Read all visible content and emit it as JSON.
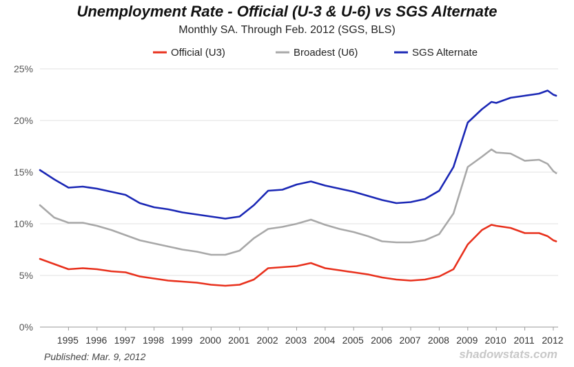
{
  "chart_data": {
    "type": "line",
    "title": "Unemployment Rate - Official (U-3 & U-6) vs SGS Alternate",
    "subtitle": "Monthly SA. Through Feb. 2012  (SGS, BLS)",
    "xlabel": "",
    "ylabel": "",
    "xlim": [
      1994.0,
      2012.17
    ],
    "ylim": [
      0,
      25
    ],
    "ytick_values": [
      0,
      5,
      10,
      15,
      20,
      25
    ],
    "ytick_labels": [
      "0%",
      "5%",
      "10%",
      "15%",
      "20%",
      "25%"
    ],
    "xtick_labels": [
      "1995",
      "1996",
      "1997",
      "1998",
      "1999",
      "2000",
      "2001",
      "2002",
      "2003",
      "2004",
      "2005",
      "2006",
      "2007",
      "2008",
      "2009",
      "2010",
      "2011",
      "2012"
    ],
    "grid": true,
    "legend_position": "top",
    "series": [
      {
        "name": "Official (U3)",
        "color": "#e8301c",
        "x": [
          1994.0,
          1994.5,
          1995.0,
          1995.5,
          1996.0,
          1996.5,
          1997.0,
          1997.5,
          1998.0,
          1998.5,
          1999.0,
          1999.5,
          2000.0,
          2000.5,
          2001.0,
          2001.5,
          2002.0,
          2002.5,
          2003.0,
          2003.5,
          2004.0,
          2004.5,
          2005.0,
          2005.5,
          2006.0,
          2006.5,
          2007.0,
          2007.5,
          2008.0,
          2008.5,
          2009.0,
          2009.5,
          2009.83,
          2010.0,
          2010.5,
          2011.0,
          2011.5,
          2011.8,
          2012.0,
          2012.1
        ],
        "values": [
          6.6,
          6.1,
          5.6,
          5.7,
          5.6,
          5.4,
          5.3,
          4.9,
          4.7,
          4.5,
          4.4,
          4.3,
          4.1,
          4.0,
          4.1,
          4.6,
          5.7,
          5.8,
          5.9,
          6.2,
          5.7,
          5.5,
          5.3,
          5.1,
          4.8,
          4.6,
          4.5,
          4.6,
          4.9,
          5.6,
          8.0,
          9.4,
          9.9,
          9.8,
          9.6,
          9.1,
          9.1,
          8.8,
          8.4,
          8.3
        ]
      },
      {
        "name": "Broadest (U6)",
        "color": "#a8a8a8",
        "x": [
          1994.0,
          1994.5,
          1995.0,
          1995.5,
          1996.0,
          1996.5,
          1997.0,
          1997.5,
          1998.0,
          1998.5,
          1999.0,
          1999.5,
          2000.0,
          2000.5,
          2001.0,
          2001.5,
          2002.0,
          2002.5,
          2003.0,
          2003.5,
          2004.0,
          2004.5,
          2005.0,
          2005.5,
          2006.0,
          2006.5,
          2007.0,
          2007.5,
          2008.0,
          2008.5,
          2009.0,
          2009.5,
          2009.83,
          2010.0,
          2010.5,
          2011.0,
          2011.5,
          2011.8,
          2012.0,
          2012.1
        ],
        "values": [
          11.8,
          10.6,
          10.1,
          10.1,
          9.8,
          9.4,
          8.9,
          8.4,
          8.1,
          7.8,
          7.5,
          7.3,
          7.0,
          7.0,
          7.4,
          8.6,
          9.5,
          9.7,
          10.0,
          10.4,
          9.9,
          9.5,
          9.2,
          8.8,
          8.3,
          8.2,
          8.2,
          8.4,
          9.0,
          11.0,
          15.5,
          16.5,
          17.2,
          16.9,
          16.8,
          16.1,
          16.2,
          15.8,
          15.1,
          14.9
        ]
      },
      {
        "name": "SGS Alternate",
        "color": "#1a27b5",
        "x": [
          1994.0,
          1994.5,
          1995.0,
          1995.5,
          1996.0,
          1996.5,
          1997.0,
          1997.5,
          1998.0,
          1998.5,
          1999.0,
          1999.5,
          2000.0,
          2000.5,
          2001.0,
          2001.5,
          2002.0,
          2002.5,
          2003.0,
          2003.5,
          2004.0,
          2004.5,
          2005.0,
          2005.5,
          2006.0,
          2006.5,
          2007.0,
          2007.5,
          2008.0,
          2008.5,
          2009.0,
          2009.5,
          2009.83,
          2010.0,
          2010.5,
          2011.0,
          2011.5,
          2011.8,
          2012.0,
          2012.1
        ],
        "values": [
          15.2,
          14.3,
          13.5,
          13.6,
          13.4,
          13.1,
          12.8,
          12.0,
          11.6,
          11.4,
          11.1,
          10.9,
          10.7,
          10.5,
          10.7,
          11.8,
          13.2,
          13.3,
          13.8,
          14.1,
          13.7,
          13.4,
          13.1,
          12.7,
          12.3,
          12.0,
          12.1,
          12.4,
          13.2,
          15.5,
          19.8,
          21.1,
          21.8,
          21.7,
          22.2,
          22.4,
          22.6,
          22.9,
          22.5,
          22.4
        ]
      }
    ]
  },
  "legend": [
    {
      "label": "Official (U3)",
      "color": "#e8301c"
    },
    {
      "label": "Broadest (U6)",
      "color": "#a8a8a8"
    },
    {
      "label": "SGS Alternate",
      "color": "#1a27b5"
    }
  ],
  "footer": {
    "published": "Published: Mar. 9, 2012",
    "source": "shadowstats.com"
  }
}
